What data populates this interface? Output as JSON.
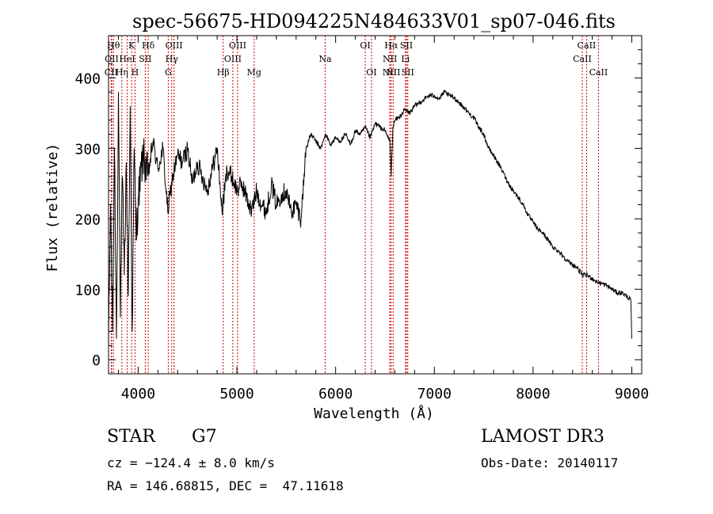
{
  "chart_data": {
    "type": "line",
    "title": "spec-56675-HD094225N484633V01_sp07-046.fits",
    "xlabel": "Wavelength (Å)",
    "ylabel": "Flux (relative)",
    "xlim": [
      3700,
      9100
    ],
    "ylim": [
      -20,
      460
    ],
    "xticks": [
      4000,
      5000,
      6000,
      7000,
      8000,
      9000
    ],
    "yticks": [
      0,
      100,
      200,
      300,
      400
    ],
    "series": [
      {
        "name": "flux",
        "x": [
          3700,
          3720,
          3740,
          3760,
          3780,
          3800,
          3820,
          3840,
          3860,
          3880,
          3900,
          3920,
          3940,
          3960,
          3980,
          4000,
          4050,
          4100,
          4150,
          4200,
          4250,
          4300,
          4350,
          4400,
          4450,
          4500,
          4550,
          4600,
          4650,
          4700,
          4750,
          4800,
          4850,
          4900,
          4950,
          5000,
          5050,
          5100,
          5150,
          5200,
          5250,
          5300,
          5350,
          5400,
          5450,
          5500,
          5550,
          5600,
          5650,
          5700,
          5750,
          5800,
          5850,
          5900,
          5950,
          6000,
          6050,
          6100,
          6150,
          6200,
          6250,
          6300,
          6350,
          6400,
          6450,
          6500,
          6550,
          6563,
          6580,
          6600,
          6650,
          6700,
          6750,
          6800,
          6850,
          6900,
          6950,
          7000,
          7050,
          7100,
          7150,
          7200,
          7250,
          7300,
          7350,
          7400,
          7450,
          7500,
          7550,
          7600,
          7650,
          7700,
          7750,
          7800,
          7850,
          7900,
          7950,
          8000,
          8050,
          8100,
          8150,
          8200,
          8250,
          8300,
          8350,
          8400,
          8450,
          8500,
          8550,
          8600,
          8650,
          8700,
          8750,
          8800,
          8850,
          8900,
          8950,
          8990,
          9000
        ],
        "values": [
          20,
          220,
          40,
          300,
          30,
          380,
          60,
          260,
          120,
          280,
          90,
          360,
          40,
          300,
          170,
          230,
          290,
          260,
          310,
          270,
          300,
          210,
          260,
          290,
          280,
          300,
          250,
          280,
          260,
          240,
          270,
          300,
          210,
          270,
          260,
          240,
          250,
          230,
          210,
          240,
          220,
          210,
          250,
          220,
          235,
          240,
          210,
          220,
          200,
          300,
          320,
          310,
          300,
          320,
          305,
          315,
          310,
          320,
          305,
          325,
          320,
          330,
          315,
          335,
          330,
          325,
          310,
          260,
          330,
          340,
          345,
          355,
          350,
          360,
          365,
          370,
          375,
          375,
          370,
          380,
          375,
          372,
          365,
          358,
          350,
          343,
          330,
          320,
          300,
          290,
          278,
          265,
          250,
          240,
          230,
          220,
          205,
          195,
          185,
          180,
          170,
          160,
          155,
          148,
          140,
          135,
          130,
          120,
          120,
          115,
          110,
          108,
          105,
          100,
          95,
          95,
          90,
          85,
          30
        ]
      }
    ],
    "lines": [
      {
        "label": "CII",
        "x": 3727,
        "row": 3
      },
      {
        "label": "OII",
        "x": 3732,
        "row": 2
      },
      {
        "label": "Hθ",
        "x": 3750,
        "row": 1
      },
      {
        "label": "Hη",
        "x": 3835,
        "row": 3
      },
      {
        "label": "HeI",
        "x": 3889,
        "row": 2
      },
      {
        "label": "K",
        "x": 3934,
        "row": 1
      },
      {
        "label": "H",
        "x": 3968,
        "row": 3
      },
      {
        "label": "SII",
        "x": 4072,
        "row": 2
      },
      {
        "label": "Hδ",
        "x": 4102,
        "row": 1
      },
      {
        "label": "G",
        "x": 4305,
        "row": 3
      },
      {
        "label": "Hγ",
        "x": 4340,
        "row": 2
      },
      {
        "label": "OIII",
        "x": 4363,
        "row": 1
      },
      {
        "label": "Hβ",
        "x": 4861,
        "row": 3
      },
      {
        "label": "OIII",
        "x": 4959,
        "row": 2
      },
      {
        "label": "OIII",
        "x": 5007,
        "row": 1
      },
      {
        "label": "Mg",
        "x": 5175,
        "row": 3
      },
      {
        "label": "Na",
        "x": 5894,
        "row": 2
      },
      {
        "label": "OI",
        "x": 6300,
        "row": 1
      },
      {
        "label": "OI",
        "x": 6363,
        "row": 3
      },
      {
        "label": "NII",
        "x": 6548,
        "row": 3
      },
      {
        "label": "NII",
        "x": 6550,
        "row": 2
      },
      {
        "label": "Hα",
        "x": 6563,
        "row": 1
      },
      {
        "label": "NII",
        "x": 6583,
        "row": 3
      },
      {
        "label": "Li",
        "x": 6707,
        "row": 2
      },
      {
        "label": "SII",
        "x": 6717,
        "row": 1
      },
      {
        "label": "SII",
        "x": 6731,
        "row": 3
      },
      {
        "label": "CaII",
        "x": 8498,
        "row": 2
      },
      {
        "label": "CaII",
        "x": 8542,
        "row": 1
      },
      {
        "label": "CaII",
        "x": 8662,
        "row": 3
      }
    ]
  },
  "info": {
    "class": "STAR",
    "subclass": "G7",
    "survey": "LAMOST DR3",
    "redshift": "cz = −124.4 ± 8.0 km/s",
    "obs_date": "Obs-Date: 20140117",
    "coords": "RA = 146.68815, DEC =  47.11618"
  }
}
